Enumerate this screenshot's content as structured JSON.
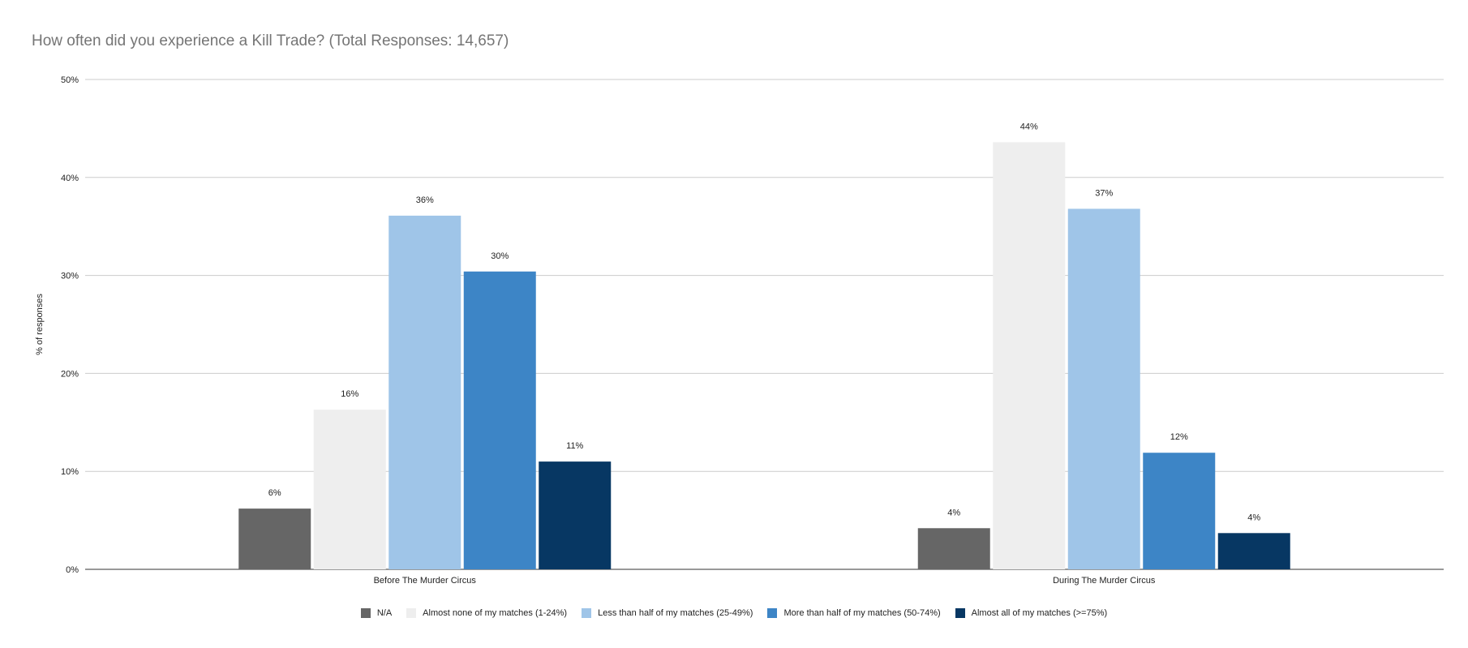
{
  "chart_data": {
    "type": "bar",
    "title": "How often did you experience a Kill Trade? (Total Responses: 14,657)",
    "ylabel": "% of responses",
    "xlabel": "",
    "ylim": [
      0,
      50
    ],
    "yticks": [
      0,
      10,
      20,
      30,
      40,
      50
    ],
    "ytick_labels": [
      "0%",
      "10%",
      "20%",
      "30%",
      "40%",
      "50%"
    ],
    "categories": [
      "Before The Murder Circus",
      "During The Murder Circus"
    ],
    "series": [
      {
        "name": "N/A",
        "color": "#666666",
        "values": [
          6.2,
          4.2
        ],
        "labels": [
          "6%",
          "4%"
        ]
      },
      {
        "name": "Almost none of my matches (1-24%)",
        "color": "#eeeeee",
        "values": [
          16.3,
          43.6
        ],
        "labels": [
          "16%",
          "44%"
        ]
      },
      {
        "name": "Less than half of my matches (25-49%)",
        "color": "#9fc5e8",
        "values": [
          36.1,
          36.8
        ],
        "labels": [
          "36%",
          "37%"
        ]
      },
      {
        "name": "More than half of my matches (50-74%)",
        "color": "#3d85c6",
        "values": [
          30.4,
          11.9
        ],
        "labels": [
          "30%",
          "12%"
        ]
      },
      {
        "name": "Almost all of my matches (>=75%)",
        "color": "#073763",
        "values": [
          11.0,
          3.7
        ],
        "labels": [
          "11%",
          "4%"
        ]
      }
    ],
    "grid": true,
    "legend_position": "bottom"
  }
}
